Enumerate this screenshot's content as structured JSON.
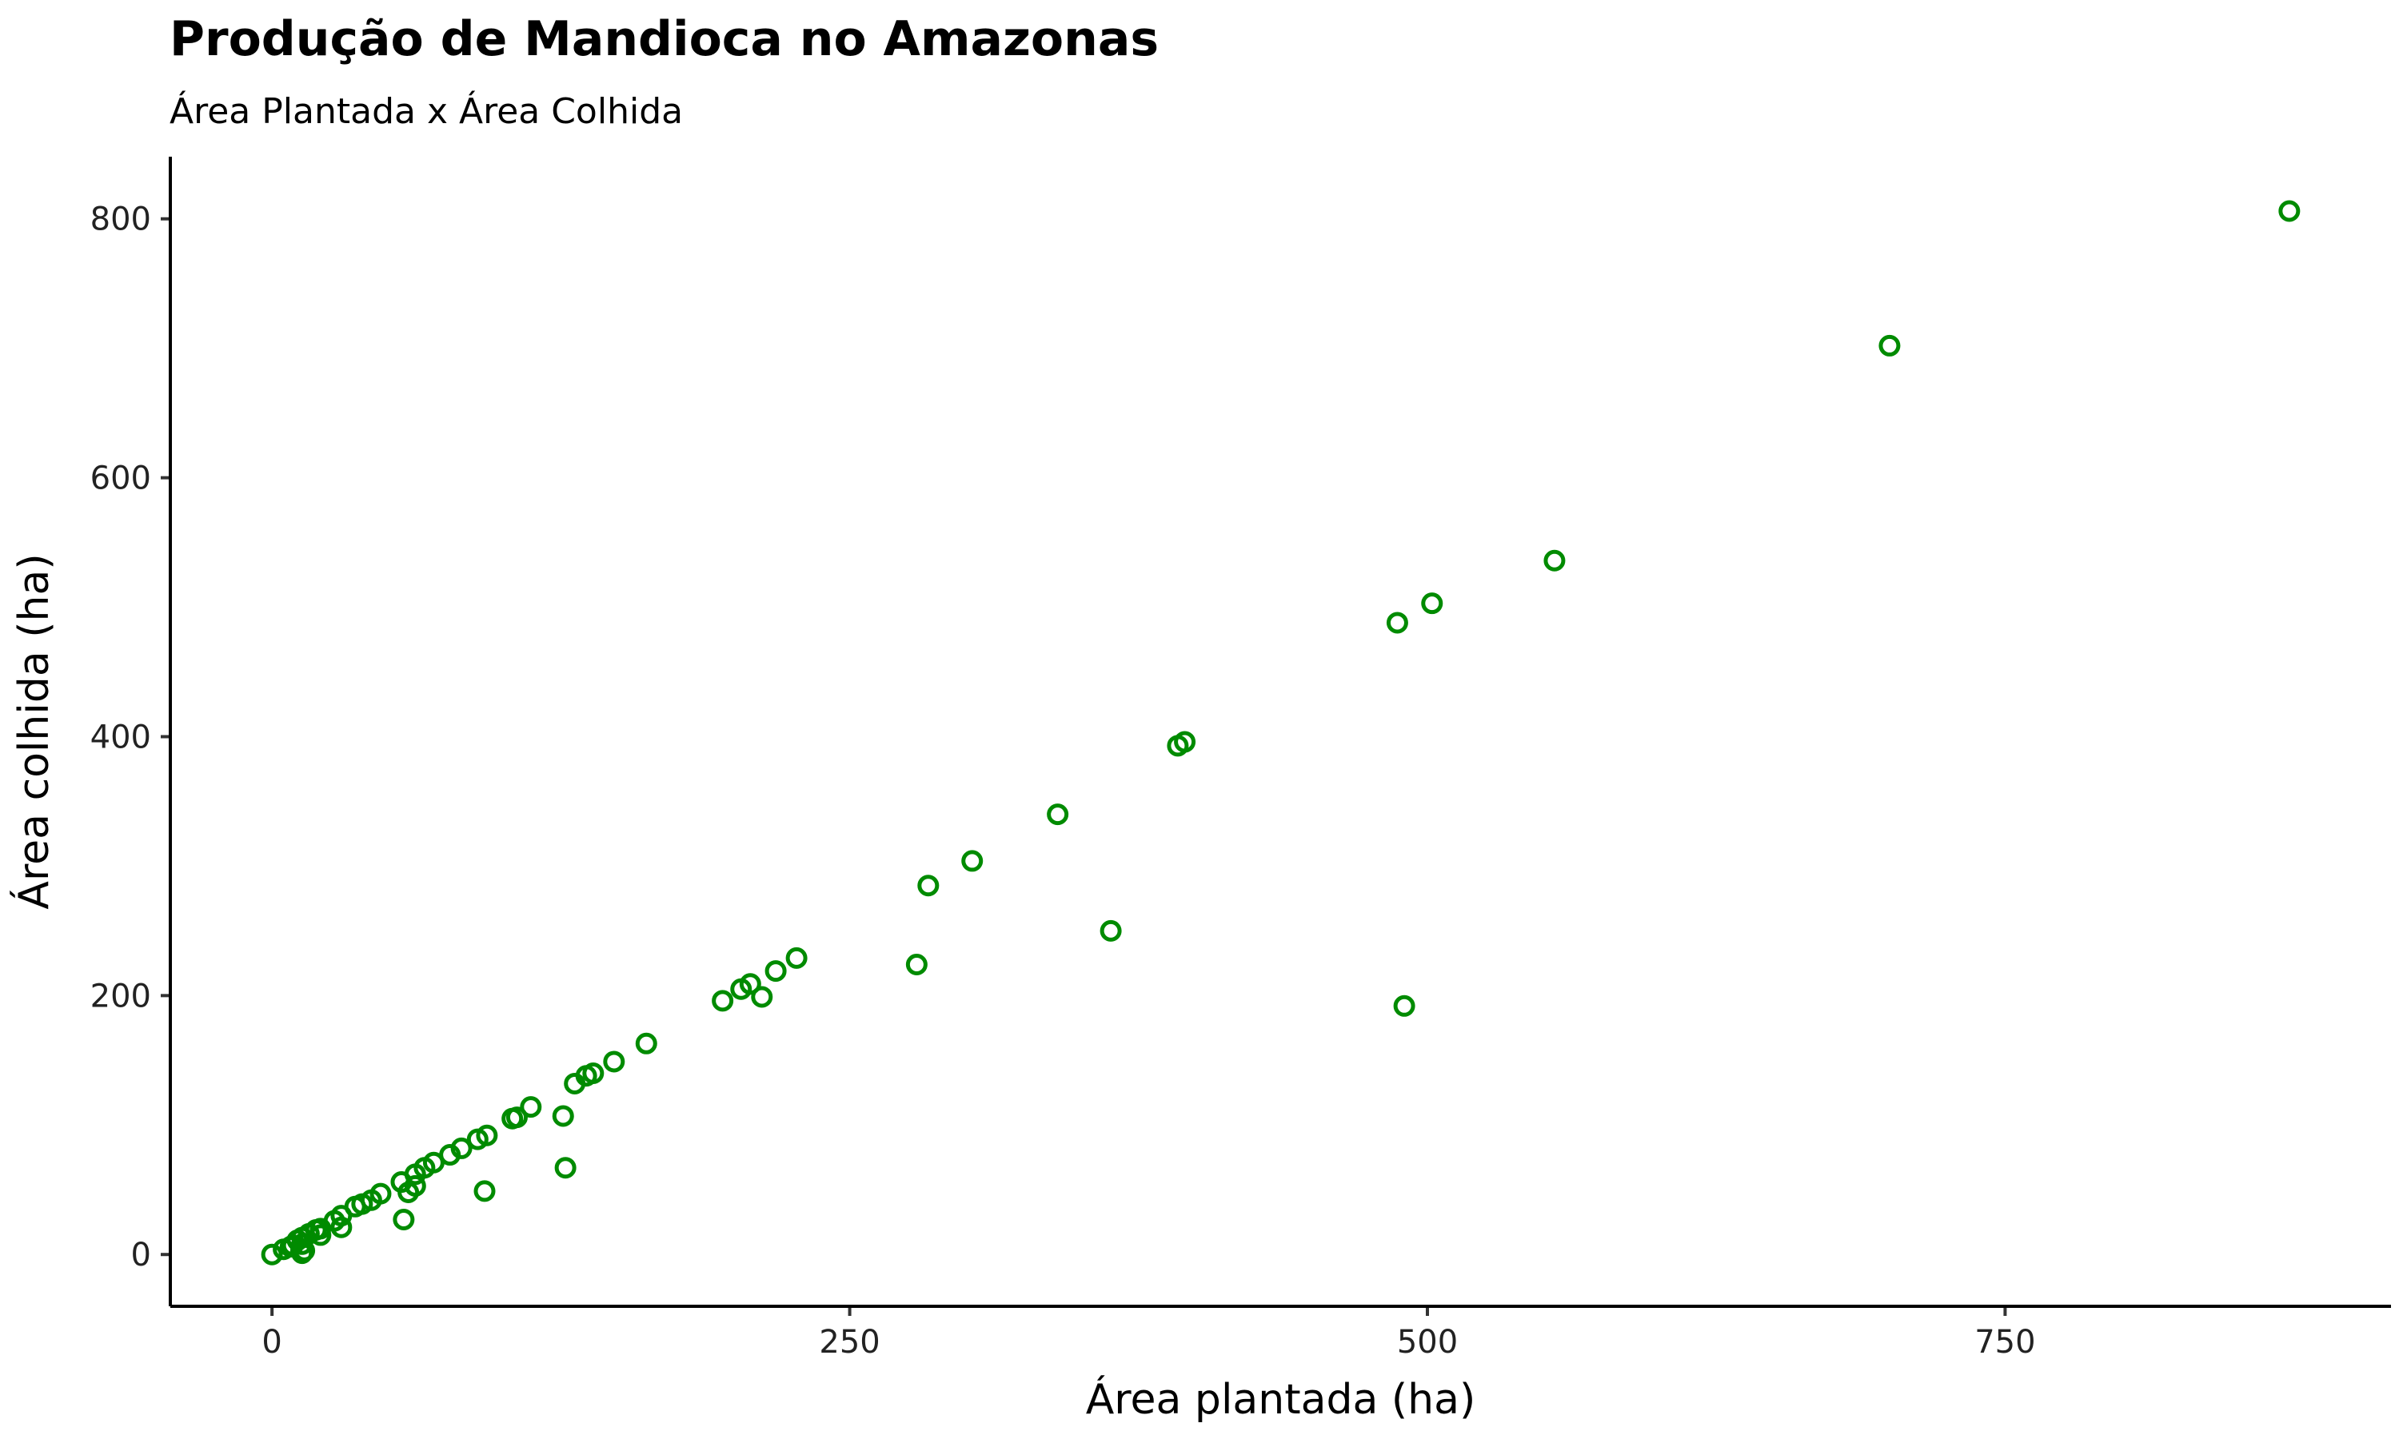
{
  "chart_data": {
    "type": "scatter",
    "title": "Produção de Mandioca no Amazonas",
    "subtitle": "Área Plantada x Área Colhida",
    "xlabel": "Área plantada (ha)",
    "ylabel": "Área colhida (ha)",
    "xlim": [
      -44,
      917
    ],
    "ylim": [
      -40,
      848
    ],
    "xticks": [
      0,
      250,
      500,
      750
    ],
    "yticks": [
      0,
      200,
      400,
      600,
      800
    ],
    "grid": false,
    "legend": "none",
    "marker_color": "#008B00",
    "marker_style": "hollow-circle",
    "points": [
      {
        "x": 873,
        "y": 806
      },
      {
        "x": 700,
        "y": 702
      },
      {
        "x": 555,
        "y": 536
      },
      {
        "x": 502,
        "y": 503
      },
      {
        "x": 487,
        "y": 488
      },
      {
        "x": 490,
        "y": 192
      },
      {
        "x": 395,
        "y": 396
      },
      {
        "x": 392,
        "y": 393
      },
      {
        "x": 340,
        "y": 340
      },
      {
        "x": 363,
        "y": 250
      },
      {
        "x": 303,
        "y": 304
      },
      {
        "x": 284,
        "y": 285
      },
      {
        "x": 279,
        "y": 224
      },
      {
        "x": 227,
        "y": 229
      },
      {
        "x": 218,
        "y": 219
      },
      {
        "x": 207,
        "y": 209
      },
      {
        "x": 203,
        "y": 205
      },
      {
        "x": 212,
        "y": 199
      },
      {
        "x": 195,
        "y": 196
      },
      {
        "x": 162,
        "y": 163
      },
      {
        "x": 148,
        "y": 149
      },
      {
        "x": 139,
        "y": 140
      },
      {
        "x": 136,
        "y": 138
      },
      {
        "x": 131,
        "y": 132
      },
      {
        "x": 127,
        "y": 67
      },
      {
        "x": 126,
        "y": 107
      },
      {
        "x": 112,
        "y": 114
      },
      {
        "x": 106,
        "y": 106
      },
      {
        "x": 104,
        "y": 105
      },
      {
        "x": 93,
        "y": 92
      },
      {
        "x": 89,
        "y": 89
      },
      {
        "x": 92,
        "y": 49
      },
      {
        "x": 82,
        "y": 82
      },
      {
        "x": 77,
        "y": 77
      },
      {
        "x": 70,
        "y": 71
      },
      {
        "x": 66,
        "y": 67
      },
      {
        "x": 62,
        "y": 62
      },
      {
        "x": 62,
        "y": 53
      },
      {
        "x": 59,
        "y": 48
      },
      {
        "x": 56,
        "y": 56
      },
      {
        "x": 57,
        "y": 27
      },
      {
        "x": 47,
        "y": 47
      },
      {
        "x": 43,
        "y": 42
      },
      {
        "x": 39,
        "y": 39
      },
      {
        "x": 36,
        "y": 37
      },
      {
        "x": 30,
        "y": 30
      },
      {
        "x": 27,
        "y": 26
      },
      {
        "x": 30,
        "y": 21
      },
      {
        "x": 21,
        "y": 20
      },
      {
        "x": 19,
        "y": 19
      },
      {
        "x": 16,
        "y": 16
      },
      {
        "x": 21,
        "y": 15
      },
      {
        "x": 13,
        "y": 13
      },
      {
        "x": 11,
        "y": 11
      },
      {
        "x": 13,
        "y": 8
      },
      {
        "x": 9,
        "y": 7
      },
      {
        "x": 8,
        "y": 6
      },
      {
        "x": 5,
        "y": 4
      },
      {
        "x": 14,
        "y": 3
      },
      {
        "x": 13,
        "y": 1
      },
      {
        "x": 0,
        "y": 0
      }
    ]
  }
}
